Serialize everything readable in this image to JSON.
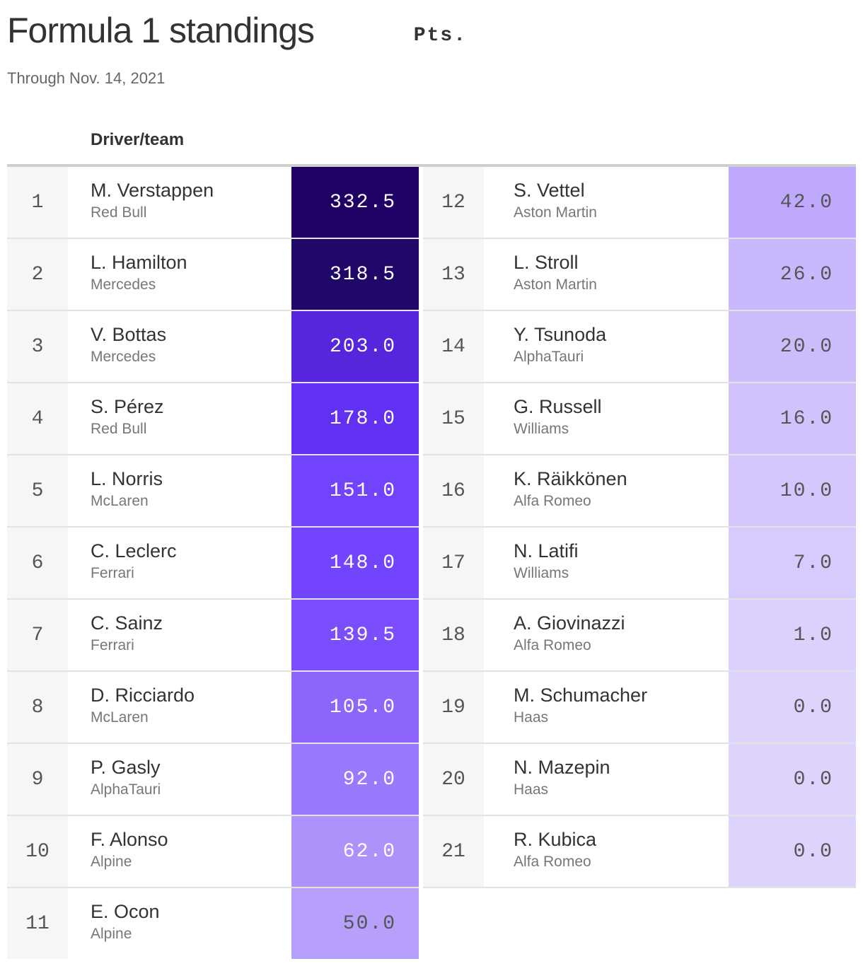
{
  "header": {
    "title": "Formula 1 standings",
    "subtitle": "Through Nov. 14, 2021",
    "col_driver": "Driver/team",
    "col_points": "Pts."
  },
  "colors": {
    "darkest": "#1f0065",
    "lightest": "#ddd3fd"
  },
  "chart_data": {
    "type": "table",
    "title": "Formula 1 standings",
    "subtitle": "Through Nov. 14, 2021",
    "columns": [
      "Driver/team",
      "Pts."
    ],
    "rows": [
      {
        "rank": "1",
        "driver": "M. Verstappen",
        "team": "Red Bull",
        "points": "332.5",
        "value": 332.5,
        "color": "#1f0065",
        "text_color": "#ffffff"
      },
      {
        "rank": "2",
        "driver": "L. Hamilton",
        "team": "Mercedes",
        "points": "318.5",
        "value": 318.5,
        "color": "#200868",
        "text_color": "#ffffff"
      },
      {
        "rank": "3",
        "driver": "V. Bottas",
        "team": "Mercedes",
        "points": "203.0",
        "value": 203.0,
        "color": "#5526dc",
        "text_color": "#ffffff"
      },
      {
        "rank": "4",
        "driver": "S. Pérez",
        "team": "Red Bull",
        "points": "178.0",
        "value": 178.0,
        "color": "#6230f2",
        "text_color": "#ffffff"
      },
      {
        "rank": "5",
        "driver": "L. Norris",
        "team": "McLaren",
        "points": "151.0",
        "value": 151.0,
        "color": "#7243fc",
        "text_color": "#ffffff"
      },
      {
        "rank": "6",
        "driver": "C. Leclerc",
        "team": "Ferrari",
        "points": "148.0",
        "value": 148.0,
        "color": "#7344fd",
        "text_color": "#ffffff"
      },
      {
        "rank": "7",
        "driver": "C. Sainz",
        "team": "Ferrari",
        "points": "139.5",
        "value": 139.5,
        "color": "#7a4dfd",
        "text_color": "#ffffff"
      },
      {
        "rank": "8",
        "driver": "D. Ricciardo",
        "team": "McLaren",
        "points": "105.0",
        "value": 105.0,
        "color": "#8c66fa",
        "text_color": "#ffffff"
      },
      {
        "rank": "9",
        "driver": "P. Gasly",
        "team": "AlphaTauri",
        "points": "92.0",
        "value": 92.0,
        "color": "#9a7afc",
        "text_color": "#ffffff"
      },
      {
        "rank": "10",
        "driver": "F. Alonso",
        "team": "Alpine",
        "points": "62.0",
        "value": 62.0,
        "color": "#ad92fc",
        "text_color": "#ffffff"
      },
      {
        "rank": "11",
        "driver": "E. Ocon",
        "team": "Alpine",
        "points": "50.0",
        "value": 50.0,
        "color": "#b7a0fb",
        "text_color": "#555555"
      },
      {
        "rank": "12",
        "driver": "S. Vettel",
        "team": "Aston Martin",
        "points": "42.0",
        "value": 42.0,
        "color": "#bea9fc",
        "text_color": "#555555"
      },
      {
        "rank": "13",
        "driver": "L. Stroll",
        "team": "Aston Martin",
        "points": "26.0",
        "value": 26.0,
        "color": "#cab8fc",
        "text_color": "#555555"
      },
      {
        "rank": "14",
        "driver": "Y. Tsunoda",
        "team": "AlphaTauri",
        "points": "20.0",
        "value": 20.0,
        "color": "#cdbcfb",
        "text_color": "#555555"
      },
      {
        "rank": "15",
        "driver": "G. Russell",
        "team": "Williams",
        "points": "16.0",
        "value": 16.0,
        "color": "#d1c2fc",
        "text_color": "#555555"
      },
      {
        "rank": "16",
        "driver": "K. Räikkönen",
        "team": "Alfa Romeo",
        "points": "10.0",
        "value": 10.0,
        "color": "#d5c7fd",
        "text_color": "#555555"
      },
      {
        "rank": "17",
        "driver": "N. Latifi",
        "team": "Williams",
        "points": "7.0",
        "value": 7.0,
        "color": "#d7cafd",
        "text_color": "#555555"
      },
      {
        "rank": "18",
        "driver": "A. Giovinazzi",
        "team": "Alfa Romeo",
        "points": "1.0",
        "value": 1.0,
        "color": "#dcd0fd",
        "text_color": "#555555"
      },
      {
        "rank": "19",
        "driver": "M. Schumacher",
        "team": "Haas",
        "points": "0.0",
        "value": 0.0,
        "color": "#ddd3fd",
        "text_color": "#555555"
      },
      {
        "rank": "20",
        "driver": "N. Mazepin",
        "team": "Haas",
        "points": "0.0",
        "value": 0.0,
        "color": "#ddd3fd",
        "text_color": "#555555"
      },
      {
        "rank": "21",
        "driver": "R. Kubica",
        "team": "Alfa Romeo",
        "points": "0.0",
        "value": 0.0,
        "color": "#ddd3fd",
        "text_color": "#555555"
      }
    ]
  }
}
